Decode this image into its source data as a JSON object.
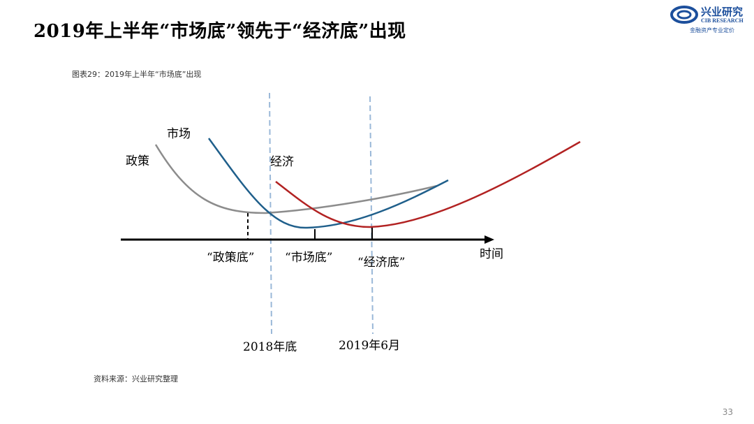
{
  "header": {
    "title": "2019年上半年“市场底”领先于“经济底”出现",
    "logo": {
      "name_cn": "兴业研究",
      "name_en": "CIB RESEARCH",
      "tagline": "金融资产专业定价",
      "icon": "cib-logo-icon",
      "color": "#1c4f9c"
    }
  },
  "figure": {
    "caption": "图表29：2019年上半年“市场底”出现",
    "curve_labels": {
      "policy": "政策",
      "market": "市场",
      "economy": "经济"
    },
    "bottom_labels": {
      "policy_bottom": "“政策底”",
      "market_bottom": "“市场底”",
      "economy_bottom": "“经济底”"
    },
    "axis_label": "时间",
    "dates": {
      "end_2018": "2018年底",
      "june_2019": "2019年6月"
    },
    "colors": {
      "policy": "#8c8c8c",
      "market": "#1f5f8b",
      "economy": "#b22222",
      "guide": "#9ab8d8"
    }
  },
  "footer": {
    "source": "资料来源：兴业研究整理",
    "page_number": "33"
  }
}
